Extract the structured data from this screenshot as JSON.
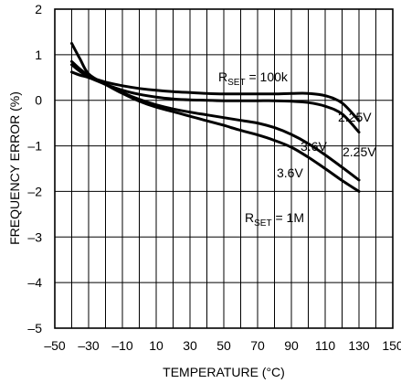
{
  "chart_data": {
    "type": "line",
    "title": "",
    "xlabel": "TEMPERATURE (°C)",
    "ylabel": "FREQUENCY ERROR (%)",
    "xlim": [
      -50,
      150
    ],
    "ylim": [
      -5,
      2
    ],
    "grid": true,
    "x_ticks": [
      "–50",
      "–30",
      "–10",
      "10",
      "30",
      "50",
      "70",
      "90",
      "110",
      "130",
      "150"
    ],
    "y_ticks": [
      "2",
      "1",
      "0",
      "–1",
      "–2",
      "–3",
      "–4",
      "–5"
    ],
    "series": [
      {
        "group": "RSET = 100k",
        "supply": "2.25V",
        "x": [
          -40,
          -35,
          -30,
          -20,
          -10,
          0,
          10,
          20,
          30,
          40,
          50,
          60,
          70,
          80,
          90,
          100,
          110,
          120,
          130
        ],
        "values": [
          0.78,
          0.63,
          0.52,
          0.4,
          0.32,
          0.26,
          0.22,
          0.19,
          0.17,
          0.15,
          0.14,
          0.14,
          0.14,
          0.14,
          0.15,
          0.15,
          0.1,
          -0.06,
          -0.45
        ]
      },
      {
        "group": "RSET = 100k",
        "supply": "3.6V",
        "x": [
          -40,
          -35,
          -30,
          -20,
          -10,
          0,
          10,
          20,
          30,
          40,
          50,
          60,
          70,
          80,
          90,
          100,
          110,
          120,
          130
        ],
        "values": [
          0.62,
          0.55,
          0.5,
          0.35,
          0.22,
          0.13,
          0.07,
          0.03,
          0.01,
          0.0,
          -0.01,
          -0.01,
          -0.01,
          -0.01,
          -0.02,
          -0.05,
          -0.13,
          -0.3,
          -0.7
        ]
      },
      {
        "group": "RSET = 1M",
        "supply": "2.25V",
        "x": [
          -40,
          -35,
          -30,
          -20,
          -10,
          0,
          10,
          20,
          30,
          40,
          50,
          60,
          70,
          80,
          90,
          100,
          110,
          120,
          130
        ],
        "values": [
          0.85,
          0.68,
          0.55,
          0.35,
          0.17,
          0.02,
          -0.1,
          -0.19,
          -0.26,
          -0.32,
          -0.38,
          -0.44,
          -0.5,
          -0.6,
          -0.75,
          -0.95,
          -1.2,
          -1.47,
          -1.75
        ]
      },
      {
        "group": "RSET = 1M",
        "supply": "3.6V",
        "x": [
          -40,
          -35,
          -30,
          -20,
          -10,
          0,
          10,
          20,
          30,
          40,
          50,
          60,
          70,
          80,
          90,
          100,
          110,
          120,
          130
        ],
        "values": [
          1.25,
          0.9,
          0.58,
          0.35,
          0.15,
          -0.02,
          -0.15,
          -0.25,
          -0.35,
          -0.45,
          -0.55,
          -0.66,
          -0.76,
          -0.88,
          -1.03,
          -1.25,
          -1.5,
          -1.76,
          -2.0
        ]
      }
    ],
    "annotations": {
      "rset_100k_prefix": "R",
      "rset_100k_sub": "SET",
      "rset_100k_suffix": " = 100k",
      "rset_1m_prefix": "R",
      "rset_1m_sub": "SET",
      "rset_1m_suffix": " = 1M",
      "v_2_25_a": "2.25V",
      "v_3_6_a": "3.6V",
      "v_2_25_b": "2.25V",
      "v_3_6_b": "3.6V"
    }
  }
}
